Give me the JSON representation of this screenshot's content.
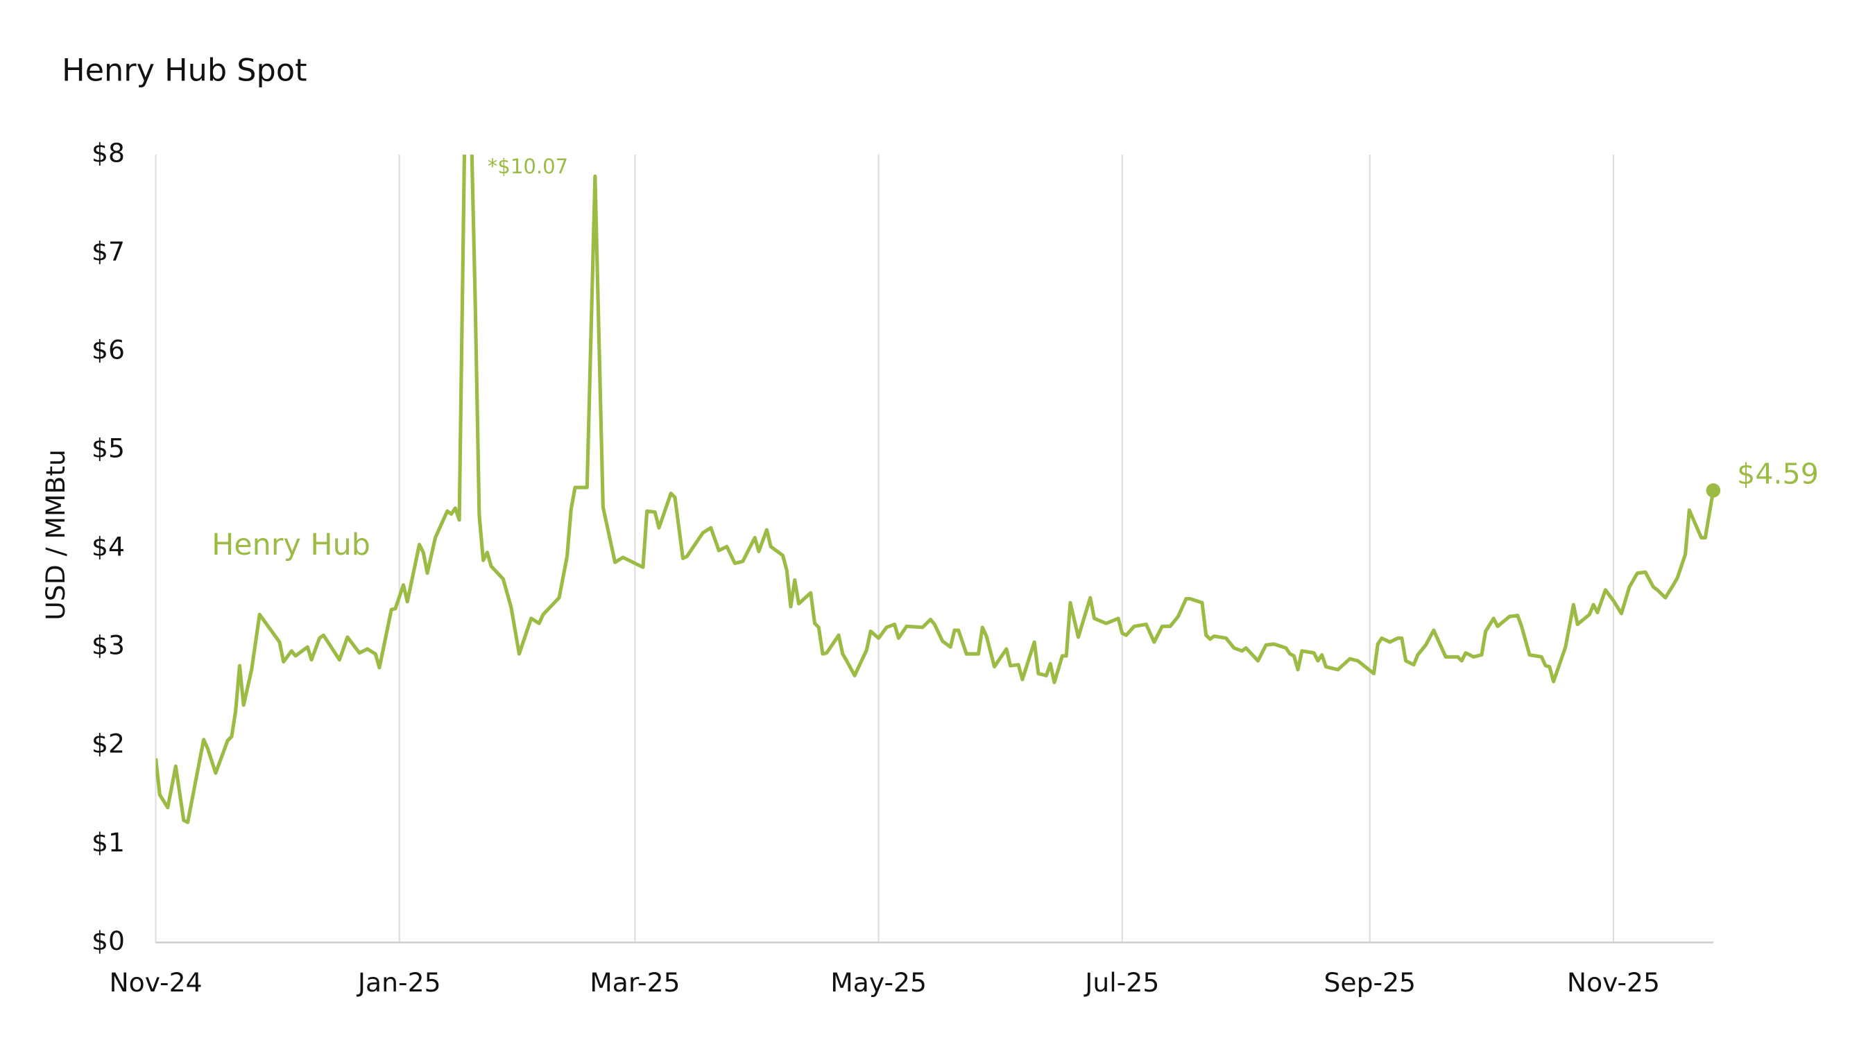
{
  "chart_data": {
    "type": "line",
    "title": "Henry Hub Spot",
    "y_label": "USD / MMBtu",
    "annotations": [
      "*$10.07",
      "$4.59"
    ],
    "xlim": [
      0,
      390
    ],
    "xticks": [
      {
        "value": 0,
        "label": "Nov-24"
      },
      {
        "value": 61,
        "label": "Jan-25"
      },
      {
        "value": 120,
        "label": "Mar-25"
      },
      {
        "value": 181,
        "label": "May-25"
      },
      {
        "value": 242,
        "label": "Jul-25"
      },
      {
        "value": 304,
        "label": "Sep-25"
      },
      {
        "value": 365,
        "label": "Nov-25"
      }
    ],
    "ylim": [
      0,
      8
    ],
    "yticks": [
      {
        "value": 0,
        "label": "$0"
      },
      {
        "value": 1,
        "label": "$1"
      },
      {
        "value": 2,
        "label": "$2"
      },
      {
        "value": 3,
        "label": "$3"
      },
      {
        "value": 4,
        "label": "$4"
      },
      {
        "value": 5,
        "label": "$5"
      },
      {
        "value": 6,
        "label": "$6"
      },
      {
        "value": 7,
        "label": "$7"
      },
      {
        "value": 8,
        "label": "$8"
      }
    ],
    "grid": true,
    "x": [
      0,
      1,
      3,
      5,
      7,
      8,
      12,
      13,
      15,
      18,
      19,
      20,
      21,
      22,
      24,
      26,
      31,
      32,
      34,
      35,
      38,
      39,
      41,
      42,
      46,
      48,
      51,
      53,
      55,
      56,
      59,
      60,
      62,
      63,
      66,
      67,
      68,
      70,
      73,
      74,
      75,
      76,
      78,
      80,
      81,
      82,
      83,
      84,
      87,
      89,
      91,
      94,
      96,
      97,
      101,
      103,
      104,
      105,
      108,
      110,
      112,
      115,
      117,
      122,
      123,
      125,
      126,
      129,
      130,
      132,
      133,
      137,
      139,
      141,
      143,
      145,
      147,
      150,
      151,
      153,
      154,
      157,
      158,
      159,
      160,
      161,
      164,
      165,
      166,
      167,
      168,
      171,
      172,
      173,
      175,
      178,
      179,
      181,
      183,
      185,
      186,
      188,
      192,
      194,
      195,
      197,
      199,
      200,
      201,
      203,
      206,
      207,
      208,
      210,
      213,
      214,
      216,
      217,
      220,
      221,
      223,
      224,
      225,
      227,
      228,
      229,
      231,
      234,
      235,
      238,
      241,
      242,
      243,
      245,
      248,
      250,
      252,
      254,
      256,
      258,
      259,
      262,
      263,
      264,
      265,
      268,
      270,
      272,
      273,
      276,
      278,
      280,
      283,
      284,
      285,
      286,
      287,
      290,
      291,
      292,
      293,
      296,
      299,
      301,
      305,
      306,
      307,
      309,
      311,
      312,
      313,
      315,
      316,
      318,
      320,
      323,
      326,
      327,
      328,
      330,
      332,
      333,
      335,
      336,
      339,
      341,
      342,
      344,
      347,
      348,
      349,
      350,
      353,
      355,
      356,
      359,
      360,
      361,
      363,
      365,
      367,
      369,
      371,
      373,
      375,
      376,
      378,
      380,
      381,
      383,
      384,
      387,
      388,
      390
    ],
    "series": [
      {
        "name": "Henry Hub",
        "color": "#9bbb45",
        "values": [
          1.87,
          1.5,
          1.37,
          1.79,
          1.24,
          1.22,
          2.06,
          1.97,
          1.72,
          2.05,
          2.09,
          2.35,
          2.81,
          2.41,
          2.77,
          3.33,
          3.05,
          2.85,
          2.96,
          2.91,
          3.0,
          2.87,
          3.09,
          3.12,
          2.87,
          3.1,
          2.94,
          2.98,
          2.93,
          2.79,
          3.38,
          3.39,
          3.63,
          3.46,
          4.04,
          3.96,
          3.75,
          4.11,
          4.38,
          4.35,
          4.41,
          4.29,
          10.07,
          6.5,
          4.34,
          3.88,
          3.96,
          3.82,
          3.69,
          3.4,
          2.93,
          3.29,
          3.24,
          3.33,
          3.5,
          3.92,
          4.4,
          4.62,
          4.62,
          7.78,
          4.42,
          3.86,
          3.91,
          3.81,
          4.38,
          4.37,
          4.21,
          4.56,
          4.52,
          3.9,
          3.92,
          4.16,
          4.21,
          3.98,
          4.02,
          3.85,
          3.87,
          4.11,
          3.97,
          4.19,
          4.02,
          3.93,
          3.78,
          3.41,
          3.68,
          3.44,
          3.55,
          3.24,
          3.2,
          2.93,
          2.94,
          3.12,
          2.93,
          2.86,
          2.71,
          2.97,
          3.16,
          3.09,
          3.2,
          3.23,
          3.09,
          3.21,
          3.2,
          3.28,
          3.23,
          3.06,
          3.0,
          3.17,
          3.17,
          2.93,
          2.93,
          3.2,
          3.11,
          2.8,
          2.98,
          2.81,
          2.82,
          2.67,
          3.05,
          2.73,
          2.71,
          2.83,
          2.64,
          2.91,
          2.91,
          3.45,
          3.1,
          3.5,
          3.29,
          3.24,
          3.29,
          3.14,
          3.12,
          3.21,
          3.23,
          3.05,
          3.21,
          3.21,
          3.31,
          3.49,
          3.49,
          3.45,
          3.12,
          3.08,
          3.11,
          3.09,
          2.99,
          2.96,
          2.99,
          2.86,
          3.02,
          3.03,
          2.99,
          2.93,
          2.91,
          2.77,
          2.96,
          2.94,
          2.86,
          2.92,
          2.8,
          2.77,
          2.88,
          2.86,
          2.73,
          3.03,
          3.09,
          3.05,
          3.09,
          3.09,
          2.86,
          2.82,
          2.92,
          3.02,
          3.17,
          2.9,
          2.9,
          2.86,
          2.94,
          2.9,
          2.92,
          3.16,
          3.29,
          3.21,
          3.31,
          3.32,
          3.21,
          2.92,
          2.9,
          2.81,
          2.8,
          2.65,
          3.0,
          3.43,
          3.23,
          3.33,
          3.43,
          3.35,
          3.58,
          3.47,
          3.34,
          3.61,
          3.75,
          3.76,
          3.61,
          3.58,
          3.5,
          3.63,
          3.7,
          3.94,
          4.39,
          4.11,
          4.11,
          4.59
        ]
      }
    ]
  }
}
